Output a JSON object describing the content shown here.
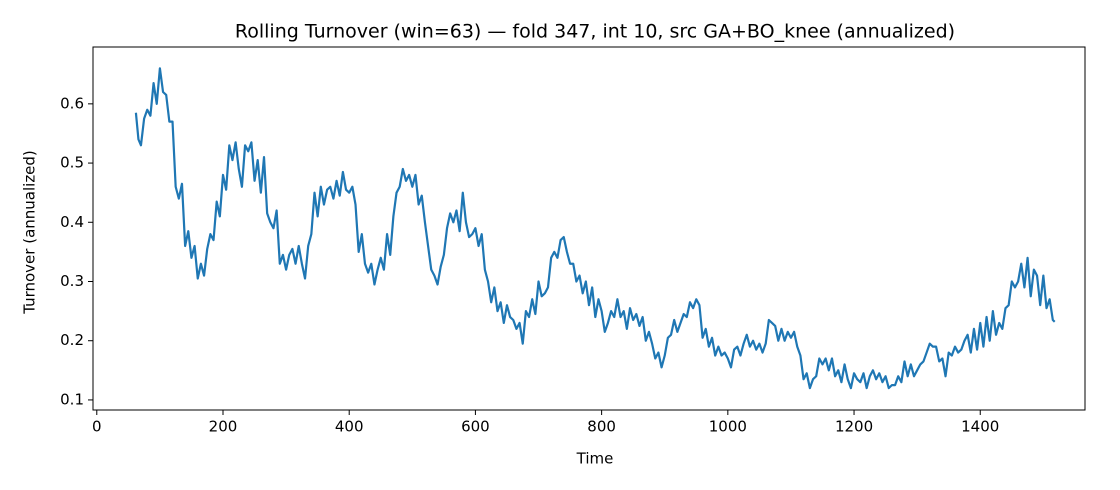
{
  "chart_data": {
    "type": "line",
    "title": "Rolling Turnover (win=63) — fold 347, int 10, src GA+BO_knee (annualized)",
    "x_label": "Time",
    "y_label": "Turnover (annualized)",
    "xlim": [
      -6,
      1566
    ],
    "ylim": [
      0.083,
      0.696
    ],
    "xticks": [
      0,
      200,
      400,
      600,
      800,
      1000,
      1200,
      1400
    ],
    "yticks": [
      0.1,
      0.2,
      0.3,
      0.4,
      0.5,
      0.6
    ],
    "grid": false,
    "series": [
      {
        "color": "#1f77b4",
        "x": [
          62,
          66,
          70,
          75,
          80,
          85,
          90,
          95,
          100,
          105,
          110,
          115,
          120,
          125,
          130,
          135,
          140,
          145,
          150,
          155,
          160,
          165,
          170,
          175,
          180,
          185,
          190,
          195,
          200,
          205,
          210,
          215,
          220,
          225,
          230,
          235,
          240,
          245,
          250,
          255,
          260,
          265,
          270,
          275,
          280,
          285,
          290,
          295,
          300,
          305,
          310,
          315,
          320,
          325,
          330,
          335,
          340,
          345,
          350,
          355,
          360,
          365,
          370,
          375,
          380,
          385,
          390,
          395,
          400,
          405,
          410,
          415,
          420,
          425,
          430,
          435,
          440,
          445,
          450,
          455,
          460,
          465,
          470,
          475,
          480,
          485,
          490,
          495,
          500,
          505,
          510,
          515,
          520,
          525,
          530,
          535,
          540,
          545,
          550,
          555,
          560,
          565,
          570,
          575,
          580,
          585,
          590,
          595,
          600,
          605,
          610,
          615,
          620,
          625,
          630,
          635,
          640,
          645,
          650,
          655,
          660,
          665,
          670,
          675,
          680,
          685,
          690,
          695,
          700,
          705,
          710,
          715,
          720,
          725,
          730,
          735,
          740,
          745,
          750,
          755,
          760,
          765,
          770,
          775,
          780,
          785,
          790,
          795,
          800,
          805,
          810,
          815,
          820,
          825,
          830,
          835,
          840,
          845,
          850,
          855,
          860,
          865,
          870,
          875,
          880,
          885,
          890,
          895,
          900,
          905,
          910,
          915,
          920,
          925,
          930,
          935,
          940,
          945,
          950,
          955,
          960,
          965,
          970,
          975,
          980,
          985,
          990,
          995,
          1000,
          1005,
          1010,
          1015,
          1020,
          1025,
          1030,
          1035,
          1040,
          1045,
          1050,
          1055,
          1060,
          1065,
          1070,
          1075,
          1080,
          1085,
          1090,
          1095,
          1100,
          1105,
          1110,
          1115,
          1120,
          1125,
          1130,
          1135,
          1140,
          1145,
          1150,
          1155,
          1160,
          1165,
          1170,
          1175,
          1180,
          1185,
          1190,
          1195,
          1200,
          1205,
          1210,
          1215,
          1220,
          1225,
          1230,
          1235,
          1240,
          1245,
          1250,
          1255,
          1260,
          1265,
          1270,
          1275,
          1280,
          1285,
          1290,
          1295,
          1300,
          1305,
          1310,
          1315,
          1320,
          1325,
          1330,
          1335,
          1340,
          1345,
          1350,
          1355,
          1360,
          1365,
          1370,
          1375,
          1380,
          1385,
          1390,
          1395,
          1400,
          1405,
          1410,
          1415,
          1420,
          1425,
          1430,
          1435,
          1440,
          1445,
          1450,
          1455,
          1460,
          1465,
          1470,
          1475,
          1480,
          1485,
          1490,
          1495,
          1500,
          1505,
          1510,
          1515,
          1518
        ],
        "values": [
          0.585,
          0.54,
          0.53,
          0.575,
          0.59,
          0.58,
          0.635,
          0.6,
          0.66,
          0.62,
          0.615,
          0.57,
          0.57,
          0.46,
          0.44,
          0.465,
          0.36,
          0.385,
          0.34,
          0.36,
          0.305,
          0.33,
          0.31,
          0.355,
          0.38,
          0.37,
          0.435,
          0.41,
          0.48,
          0.455,
          0.53,
          0.505,
          0.535,
          0.49,
          0.46,
          0.53,
          0.52,
          0.535,
          0.47,
          0.505,
          0.45,
          0.51,
          0.415,
          0.4,
          0.39,
          0.42,
          0.33,
          0.345,
          0.32,
          0.345,
          0.355,
          0.33,
          0.36,
          0.33,
          0.305,
          0.36,
          0.38,
          0.45,
          0.41,
          0.46,
          0.43,
          0.455,
          0.46,
          0.44,
          0.47,
          0.445,
          0.485,
          0.455,
          0.45,
          0.46,
          0.43,
          0.35,
          0.38,
          0.33,
          0.315,
          0.33,
          0.295,
          0.32,
          0.34,
          0.32,
          0.38,
          0.345,
          0.41,
          0.45,
          0.46,
          0.49,
          0.47,
          0.48,
          0.46,
          0.48,
          0.43,
          0.445,
          0.4,
          0.36,
          0.32,
          0.31,
          0.295,
          0.325,
          0.345,
          0.39,
          0.415,
          0.4,
          0.42,
          0.385,
          0.45,
          0.4,
          0.375,
          0.38,
          0.39,
          0.36,
          0.38,
          0.32,
          0.3,
          0.265,
          0.29,
          0.25,
          0.265,
          0.23,
          0.26,
          0.24,
          0.235,
          0.22,
          0.23,
          0.195,
          0.25,
          0.24,
          0.27,
          0.245,
          0.3,
          0.275,
          0.28,
          0.29,
          0.34,
          0.35,
          0.34,
          0.37,
          0.375,
          0.35,
          0.33,
          0.33,
          0.3,
          0.31,
          0.28,
          0.3,
          0.26,
          0.29,
          0.24,
          0.27,
          0.25,
          0.215,
          0.23,
          0.25,
          0.24,
          0.27,
          0.24,
          0.25,
          0.22,
          0.255,
          0.235,
          0.245,
          0.225,
          0.24,
          0.2,
          0.215,
          0.195,
          0.17,
          0.18,
          0.155,
          0.175,
          0.205,
          0.21,
          0.235,
          0.215,
          0.23,
          0.245,
          0.24,
          0.265,
          0.255,
          0.27,
          0.26,
          0.205,
          0.22,
          0.19,
          0.205,
          0.175,
          0.19,
          0.175,
          0.18,
          0.17,
          0.155,
          0.185,
          0.19,
          0.175,
          0.195,
          0.21,
          0.19,
          0.2,
          0.185,
          0.195,
          0.18,
          0.195,
          0.235,
          0.23,
          0.225,
          0.2,
          0.22,
          0.2,
          0.215,
          0.205,
          0.215,
          0.19,
          0.175,
          0.135,
          0.145,
          0.12,
          0.135,
          0.14,
          0.17,
          0.16,
          0.17,
          0.15,
          0.17,
          0.14,
          0.15,
          0.13,
          0.16,
          0.135,
          0.12,
          0.145,
          0.135,
          0.13,
          0.145,
          0.12,
          0.14,
          0.15,
          0.135,
          0.145,
          0.13,
          0.14,
          0.12,
          0.125,
          0.125,
          0.14,
          0.13,
          0.165,
          0.14,
          0.16,
          0.14,
          0.15,
          0.16,
          0.165,
          0.18,
          0.195,
          0.19,
          0.19,
          0.165,
          0.17,
          0.14,
          0.18,
          0.175,
          0.19,
          0.18,
          0.185,
          0.2,
          0.21,
          0.18,
          0.22,
          0.185,
          0.23,
          0.19,
          0.24,
          0.2,
          0.25,
          0.21,
          0.23,
          0.22,
          0.255,
          0.26,
          0.3,
          0.29,
          0.3,
          0.33,
          0.29,
          0.34,
          0.275,
          0.32,
          0.31,
          0.26,
          0.31,
          0.255,
          0.27,
          0.235,
          0.232
        ]
      }
    ]
  }
}
